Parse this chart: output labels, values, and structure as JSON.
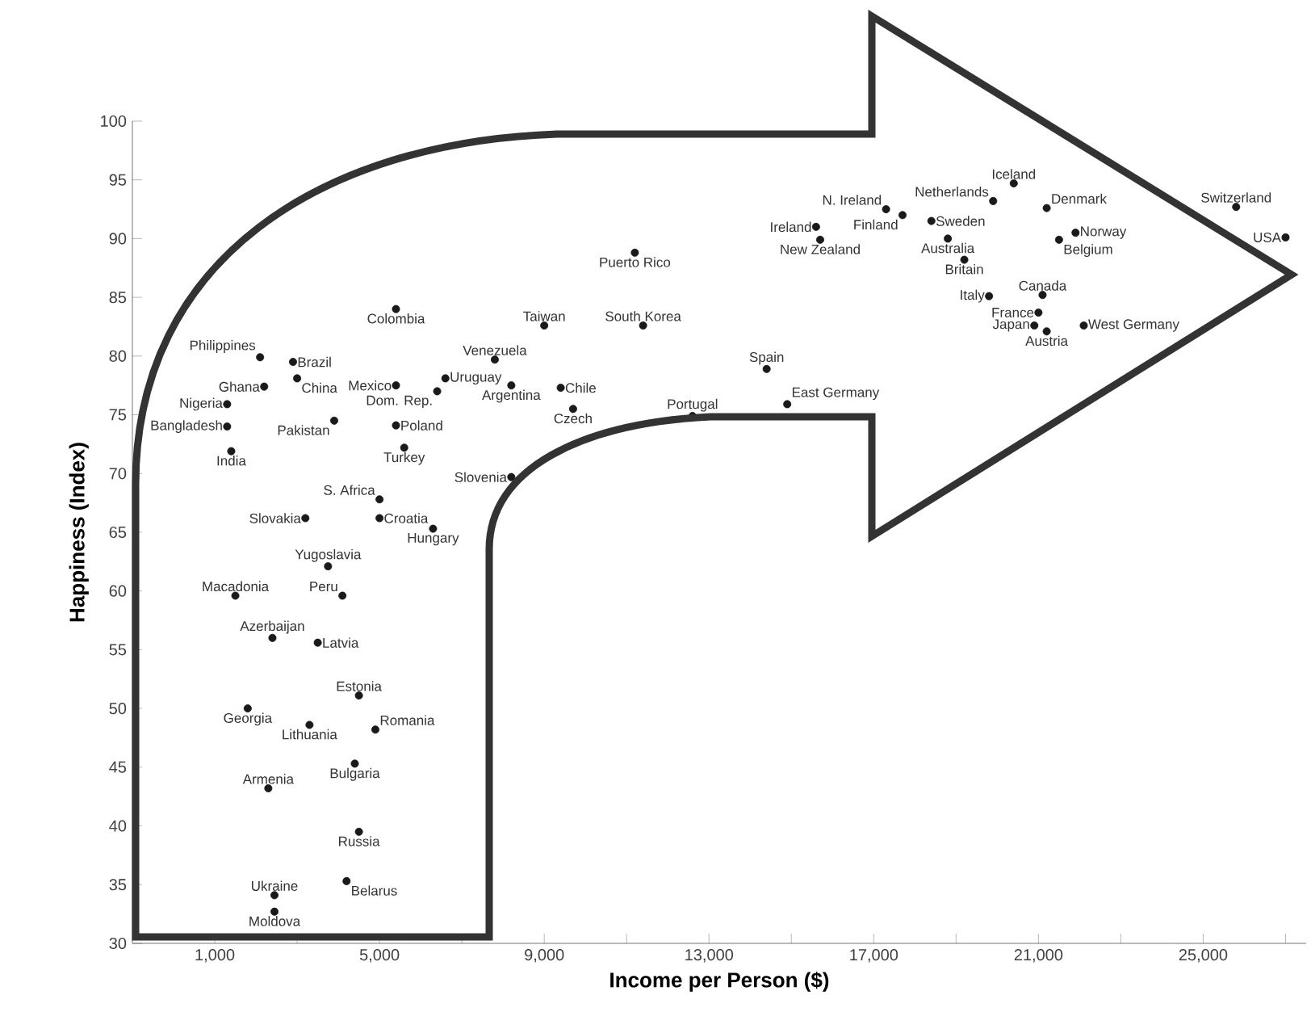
{
  "chart_data": {
    "type": "scatter",
    "xlabel": "Income per Person ($)",
    "ylabel": "Happiness (Index)",
    "xlim": [
      -1000,
      27500
    ],
    "ylim": [
      30,
      100
    ],
    "xticks": [
      {
        "value": 1000,
        "label": "1,000"
      },
      {
        "value": 3000,
        "label": null
      },
      {
        "value": 5000,
        "label": "5,000"
      },
      {
        "value": 7000,
        "label": null
      },
      {
        "value": 9000,
        "label": "9,000"
      },
      {
        "value": 11000,
        "label": null
      },
      {
        "value": 13000,
        "label": "13,000"
      },
      {
        "value": 15000,
        "label": null
      },
      {
        "value": 17000,
        "label": "17,000"
      },
      {
        "value": 19000,
        "label": null
      },
      {
        "value": 21000,
        "label": "21,000"
      },
      {
        "value": 23000,
        "label": null
      },
      {
        "value": 25000,
        "label": "25,000"
      },
      {
        "value": 27000,
        "label": null
      }
    ],
    "yticks": [
      30,
      35,
      40,
      45,
      50,
      55,
      60,
      65,
      70,
      75,
      80,
      85,
      90,
      95,
      100
    ],
    "marker": "circle",
    "series": [
      {
        "color": "#1a1a1a",
        "x": [
          11200,
          5400,
          9000,
          11400,
          2100,
          2900,
          2200,
          3000,
          1300,
          1300,
          1400,
          3900,
          5400,
          6600,
          6400,
          7800,
          8200,
          9400,
          9700,
          5400,
          5600,
          8200,
          5000,
          3200,
          5000,
          6300,
          12600,
          3750,
          1500,
          4100,
          2400,
          3500,
          4500,
          1800,
          3300,
          4900,
          4400,
          2300,
          4500,
          4200,
          2450,
          2450,
          14400,
          14900,
          15600,
          15700,
          17300,
          17700,
          18400,
          19900,
          20400,
          18800,
          19200,
          21200,
          21900,
          21500,
          19800,
          21100,
          21000,
          20900,
          21200,
          22100,
          25800,
          27000
        ],
        "values": [
          88.8,
          84.0,
          82.6,
          82.6,
          79.9,
          79.5,
          77.4,
          78.1,
          75.9,
          74.0,
          71.9,
          74.5,
          77.5,
          78.1,
          77.0,
          79.7,
          77.5,
          77.3,
          75.5,
          74.1,
          72.2,
          69.7,
          67.8,
          66.2,
          66.2,
          65.3,
          74.9,
          62.1,
          59.6,
          59.6,
          56.0,
          55.6,
          51.1,
          50.0,
          48.6,
          48.2,
          45.3,
          43.2,
          39.5,
          35.3,
          34.1,
          32.7,
          78.9,
          75.9,
          91.0,
          89.9,
          92.5,
          92.0,
          91.5,
          93.2,
          94.7,
          90.0,
          88.2,
          92.6,
          90.5,
          89.9,
          85.1,
          85.2,
          83.7,
          82.6,
          82.1,
          82.6,
          92.7,
          90.1
        ]
      }
    ],
    "annotations": [
      {
        "text": "Puerto Rico",
        "x": 11200,
        "y": 88.8
      },
      {
        "text": "Colombia",
        "x": 5400,
        "y": 84.0
      },
      {
        "text": "Taiwan",
        "x": 9000,
        "y": 82.6
      },
      {
        "text": "South Korea",
        "x": 11400,
        "y": 82.6
      },
      {
        "text": "Philippines",
        "x": 2100,
        "y": 79.9
      },
      {
        "text": "Brazil",
        "x": 2900,
        "y": 79.5
      },
      {
        "text": "Ghana",
        "x": 2200,
        "y": 77.4
      },
      {
        "text": "China",
        "x": 3000,
        "y": 78.1
      },
      {
        "text": "Nigeria",
        "x": 1300,
        "y": 75.9
      },
      {
        "text": "Bangladesh",
        "x": 1300,
        "y": 74.0
      },
      {
        "text": "India",
        "x": 1400,
        "y": 71.9
      },
      {
        "text": "Pakistan",
        "x": 3900,
        "y": 74.5
      },
      {
        "text": "Mexico",
        "x": 5400,
        "y": 77.5
      },
      {
        "text": "Uruguay",
        "x": 6600,
        "y": 78.1
      },
      {
        "text": "Dom. Rep.",
        "x": 6400,
        "y": 77.0
      },
      {
        "text": "Venezuela",
        "x": 7800,
        "y": 79.7
      },
      {
        "text": "Argentina",
        "x": 8200,
        "y": 77.5
      },
      {
        "text": "Chile",
        "x": 9400,
        "y": 77.3
      },
      {
        "text": "Czech",
        "x": 9700,
        "y": 75.5
      },
      {
        "text": "Poland",
        "x": 5400,
        "y": 74.1
      },
      {
        "text": "Turkey",
        "x": 5600,
        "y": 72.2
      },
      {
        "text": "Slovenia",
        "x": 8200,
        "y": 69.7
      },
      {
        "text": "S. Africa",
        "x": 5000,
        "y": 67.8
      },
      {
        "text": "Slovakia",
        "x": 3200,
        "y": 66.2
      },
      {
        "text": "Croatia",
        "x": 5000,
        "y": 66.2
      },
      {
        "text": "Hungary",
        "x": 6300,
        "y": 65.3
      },
      {
        "text": "Portugal",
        "x": 12600,
        "y": 74.9
      },
      {
        "text": "Yugoslavia",
        "x": 3750,
        "y": 62.1
      },
      {
        "text": "Macadonia",
        "x": 1500,
        "y": 59.6
      },
      {
        "text": "Peru",
        "x": 4100,
        "y": 59.6
      },
      {
        "text": "Azerbaijan",
        "x": 2400,
        "y": 56.0
      },
      {
        "text": "Latvia",
        "x": 3500,
        "y": 55.6
      },
      {
        "text": "Estonia",
        "x": 4500,
        "y": 51.1
      },
      {
        "text": "Georgia",
        "x": 1800,
        "y": 50.0
      },
      {
        "text": "Lithuania",
        "x": 3300,
        "y": 48.6
      },
      {
        "text": "Romania",
        "x": 4900,
        "y": 48.2
      },
      {
        "text": "Bulgaria",
        "x": 4400,
        "y": 45.3
      },
      {
        "text": "Armenia",
        "x": 2300,
        "y": 43.2
      },
      {
        "text": "Russia",
        "x": 4500,
        "y": 39.5
      },
      {
        "text": "Belarus",
        "x": 4200,
        "y": 35.3
      },
      {
        "text": "Ukraine",
        "x": 2450,
        "y": 34.1
      },
      {
        "text": "Moldova",
        "x": 2450,
        "y": 32.7
      },
      {
        "text": "Spain",
        "x": 14400,
        "y": 78.9
      },
      {
        "text": "East Germany",
        "x": 14900,
        "y": 75.9
      },
      {
        "text": "Ireland",
        "x": 15600,
        "y": 91.0
      },
      {
        "text": "New Zealand",
        "x": 15700,
        "y": 89.9
      },
      {
        "text": "N. Ireland",
        "x": 17300,
        "y": 92.5
      },
      {
        "text": "Finland",
        "x": 17700,
        "y": 92.0
      },
      {
        "text": "Sweden",
        "x": 18400,
        "y": 91.5
      },
      {
        "text": "Netherlands",
        "x": 19900,
        "y": 93.2
      },
      {
        "text": "Iceland",
        "x": 20400,
        "y": 94.7
      },
      {
        "text": "Australia",
        "x": 18800,
        "y": 90.0
      },
      {
        "text": "Britain",
        "x": 19200,
        "y": 88.2
      },
      {
        "text": "Denmark",
        "x": 21200,
        "y": 92.6
      },
      {
        "text": "Norway",
        "x": 21900,
        "y": 90.5
      },
      {
        "text": "Belgium",
        "x": 21500,
        "y": 89.9
      },
      {
        "text": "Italy",
        "x": 19800,
        "y": 85.1
      },
      {
        "text": "Canada",
        "x": 21100,
        "y": 85.2
      },
      {
        "text": "France",
        "x": 21000,
        "y": 83.7
      },
      {
        "text": "Japan",
        "x": 20900,
        "y": 82.6
      },
      {
        "text": "Austria",
        "x": 21200,
        "y": 82.1
      },
      {
        "text": "West Germany",
        "x": 22100,
        "y": 82.6
      },
      {
        "text": "Switzerland",
        "x": 25800,
        "y": 92.7
      },
      {
        "text": "USA",
        "x": 27000,
        "y": 90.1
      }
    ]
  }
}
